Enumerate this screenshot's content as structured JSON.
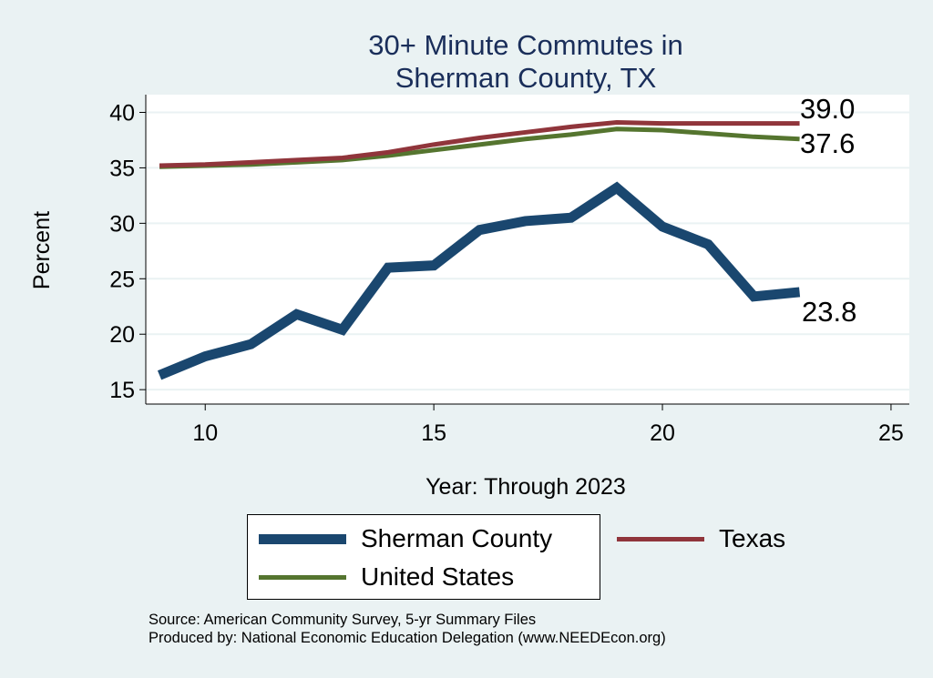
{
  "chart_data": {
    "type": "line",
    "title": [
      "30+ Minute Commutes in",
      "Sherman County, TX"
    ],
    "xlabel": "Year: Through 2023",
    "ylabel": "Percent",
    "xlim": [
      8.7,
      25.4
    ],
    "ylim": [
      13.7,
      41.6
    ],
    "xticks": [
      10,
      15,
      20,
      25
    ],
    "yticks": [
      15,
      20,
      25,
      30,
      35,
      40
    ],
    "grid": true,
    "legend_position": "bottom",
    "x": [
      9,
      10,
      11,
      12,
      13,
      14,
      15,
      16,
      17,
      18,
      19,
      20,
      21,
      22,
      23
    ],
    "series": [
      {
        "name": "Sherman County",
        "color": "#1a476f",
        "width": 11,
        "values": [
          16.3,
          18.0,
          19.1,
          21.8,
          20.4,
          26.0,
          26.2,
          29.4,
          30.2,
          30.5,
          33.2,
          29.7,
          28.1,
          23.4,
          23.8
        ],
        "end_label": "23.8"
      },
      {
        "name": "Texas",
        "color": "#90353b",
        "width": 5,
        "values": [
          35.2,
          35.3,
          35.5,
          35.7,
          35.9,
          36.4,
          37.1,
          37.7,
          38.2,
          38.7,
          39.1,
          39.0,
          39.0,
          39.0,
          39.0
        ],
        "end_label": "39.0"
      },
      {
        "name": "United States",
        "color": "#55752f",
        "width": 5,
        "values": [
          35.1,
          35.2,
          35.3,
          35.5,
          35.7,
          36.1,
          36.6,
          37.1,
          37.6,
          38.0,
          38.5,
          38.4,
          38.1,
          37.8,
          37.6
        ],
        "end_label": "37.6"
      }
    ]
  },
  "source": "Source: American Community Survey, 5-yr Summary Files",
  "produced_by": "Produced by: National Economic Education Delegation (www.NEEDEcon.org)"
}
